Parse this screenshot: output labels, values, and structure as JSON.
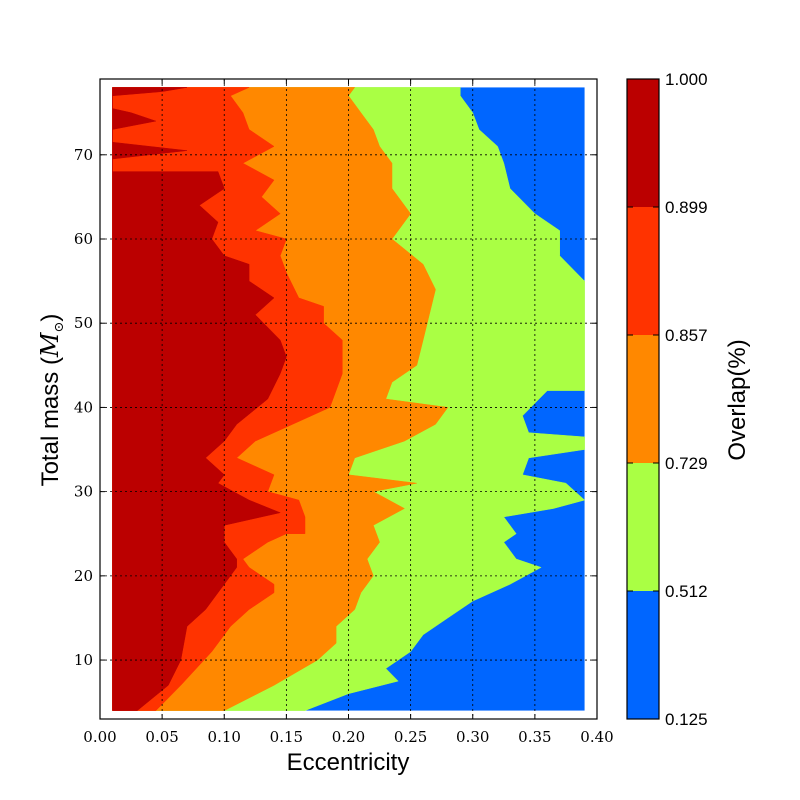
{
  "chart_data": {
    "type": "filled-contour",
    "xlabel": "Eccentricity",
    "ylabel": "Total mass (",
    "ylabel_symbol": "M",
    "ylabel_close": ")",
    "xlim": [
      0.0,
      0.4
    ],
    "ylim": [
      3,
      79
    ],
    "grid": true,
    "xticks": [
      "0.00",
      "0.05",
      "0.10",
      "0.15",
      "0.20",
      "0.25",
      "0.30",
      "0.35",
      "0.40"
    ],
    "xtick_values": [
      0.0,
      0.05,
      0.1,
      0.15,
      0.2,
      0.25,
      0.3,
      0.35,
      0.4
    ],
    "yticks": [
      "10",
      "20",
      "30",
      "40",
      "50",
      "60",
      "70"
    ],
    "ytick_values": [
      10,
      20,
      30,
      40,
      50,
      60,
      70
    ],
    "colorbar": {
      "label": "Overlap(%)",
      "levels": [
        "1.000",
        "0.899",
        "0.857",
        "0.729",
        "0.512",
        "0.125"
      ],
      "colors": [
        "#bb0000",
        "#ff3300",
        "#ff8800",
        "#aaff44",
        "#0066ff"
      ]
    },
    "data_extent": {
      "x": [
        0.01,
        0.39
      ],
      "y": [
        4,
        78
      ]
    },
    "contour_boundaries": [
      {
        "name": "0.899",
        "points": [
          [
            0.01,
            4
          ],
          [
            0.03,
            4
          ],
          [
            0.055,
            7
          ],
          [
            0.065,
            10
          ],
          [
            0.07,
            14
          ],
          [
            0.085,
            16
          ],
          [
            0.095,
            18
          ],
          [
            0.105,
            20
          ],
          [
            0.11,
            21
          ],
          [
            0.11,
            22
          ],
          [
            0.1,
            24
          ],
          [
            0.1,
            26
          ],
          [
            0.13,
            27
          ],
          [
            0.145,
            27.5
          ],
          [
            0.12,
            29
          ],
          [
            0.095,
            31
          ],
          [
            0.1,
            32
          ],
          [
            0.085,
            34
          ],
          [
            0.1,
            36
          ],
          [
            0.11,
            38
          ],
          [
            0.135,
            41
          ],
          [
            0.145,
            44
          ],
          [
            0.15,
            46
          ],
          [
            0.145,
            48
          ],
          [
            0.125,
            51
          ],
          [
            0.14,
            53
          ],
          [
            0.12,
            55
          ],
          [
            0.12,
            57
          ],
          [
            0.1,
            58
          ],
          [
            0.09,
            60
          ],
          [
            0.095,
            62
          ],
          [
            0.08,
            64
          ],
          [
            0.1,
            66
          ],
          [
            0.095,
            68
          ],
          [
            0.01,
            68
          ],
          [
            0.01,
            69.5
          ],
          [
            0.04,
            70
          ],
          [
            0.07,
            70.5
          ],
          [
            0.04,
            71
          ],
          [
            0.01,
            71.5
          ],
          [
            0.01,
            73
          ],
          [
            0.045,
            74
          ],
          [
            0.025,
            75
          ],
          [
            0.01,
            75.5
          ],
          [
            0.01,
            77
          ],
          [
            0.05,
            77.5
          ],
          [
            0.07,
            78
          ],
          [
            0.01,
            78
          ]
        ]
      },
      {
        "name": "0.857",
        "points": [
          [
            0.03,
            4
          ],
          [
            0.045,
            4
          ],
          [
            0.065,
            7
          ],
          [
            0.09,
            11
          ],
          [
            0.105,
            14
          ],
          [
            0.12,
            16
          ],
          [
            0.14,
            18
          ],
          [
            0.14,
            19
          ],
          [
            0.12,
            21
          ],
          [
            0.115,
            22
          ],
          [
            0.135,
            24
          ],
          [
            0.15,
            25
          ],
          [
            0.165,
            25
          ],
          [
            0.165,
            27
          ],
          [
            0.16,
            29
          ],
          [
            0.135,
            30
          ],
          [
            0.14,
            32
          ],
          [
            0.11,
            34
          ],
          [
            0.125,
            36
          ],
          [
            0.155,
            38
          ],
          [
            0.185,
            40
          ],
          [
            0.19,
            42
          ],
          [
            0.195,
            44
          ],
          [
            0.195,
            46
          ],
          [
            0.195,
            48
          ],
          [
            0.18,
            50
          ],
          [
            0.18,
            52
          ],
          [
            0.16,
            53
          ],
          [
            0.15,
            56
          ],
          [
            0.145,
            58
          ],
          [
            0.15,
            60
          ],
          [
            0.125,
            61
          ],
          [
            0.145,
            63
          ],
          [
            0.13,
            65
          ],
          [
            0.14,
            67
          ],
          [
            0.115,
            69
          ],
          [
            0.14,
            71
          ],
          [
            0.12,
            73
          ],
          [
            0.115,
            75
          ],
          [
            0.105,
            77
          ],
          [
            0.12,
            78
          ],
          [
            0.07,
            78
          ]
        ]
      },
      {
        "name": "0.729",
        "points": [
          [
            0.07,
            4
          ],
          [
            0.1,
            4
          ],
          [
            0.14,
            7
          ],
          [
            0.175,
            10
          ],
          [
            0.19,
            12
          ],
          [
            0.19,
            14
          ],
          [
            0.205,
            16
          ],
          [
            0.21,
            18
          ],
          [
            0.22,
            20
          ],
          [
            0.215,
            22
          ],
          [
            0.225,
            24
          ],
          [
            0.22,
            26
          ],
          [
            0.245,
            28
          ],
          [
            0.22,
            30
          ],
          [
            0.255,
            31
          ],
          [
            0.2,
            32
          ],
          [
            0.205,
            34
          ],
          [
            0.245,
            36
          ],
          [
            0.27,
            38
          ],
          [
            0.28,
            40
          ],
          [
            0.23,
            41
          ],
          [
            0.235,
            43
          ],
          [
            0.255,
            45
          ],
          [
            0.26,
            48
          ],
          [
            0.265,
            51
          ],
          [
            0.27,
            54
          ],
          [
            0.26,
            57
          ],
          [
            0.235,
            60
          ],
          [
            0.25,
            63
          ],
          [
            0.235,
            66
          ],
          [
            0.235,
            69
          ],
          [
            0.225,
            71
          ],
          [
            0.22,
            73
          ],
          [
            0.21,
            75
          ],
          [
            0.2,
            77
          ],
          [
            0.205,
            78
          ],
          [
            0.12,
            78
          ]
        ]
      },
      {
        "name": "0.512",
        "points": [
          [
            0.14,
            4
          ],
          [
            0.165,
            4
          ],
          [
            0.2,
            6
          ],
          [
            0.24,
            7.5
          ],
          [
            0.23,
            9
          ],
          [
            0.25,
            11
          ],
          [
            0.26,
            13
          ],
          [
            0.28,
            15
          ],
          [
            0.3,
            17
          ],
          [
            0.33,
            19
          ],
          [
            0.355,
            21
          ],
          [
            0.335,
            22
          ],
          [
            0.325,
            24
          ],
          [
            0.335,
            25
          ],
          [
            0.325,
            27
          ],
          [
            0.365,
            28
          ],
          [
            0.39,
            29
          ],
          [
            0.375,
            31
          ],
          [
            0.34,
            32
          ],
          [
            0.345,
            34
          ],
          [
            0.39,
            35
          ],
          [
            0.39,
            36.5
          ],
          [
            0.345,
            37
          ],
          [
            0.34,
            39
          ],
          [
            0.36,
            42
          ],
          [
            0.39,
            42
          ],
          [
            0.39,
            49
          ],
          [
            0.39,
            55
          ],
          [
            0.37,
            58
          ],
          [
            0.37,
            61
          ],
          [
            0.35,
            63
          ],
          [
            0.33,
            66
          ],
          [
            0.325,
            69
          ],
          [
            0.32,
            71
          ],
          [
            0.305,
            73
          ],
          [
            0.3,
            75
          ],
          [
            0.29,
            77
          ],
          [
            0.29,
            78
          ],
          [
            0.205,
            78
          ]
        ]
      }
    ]
  }
}
